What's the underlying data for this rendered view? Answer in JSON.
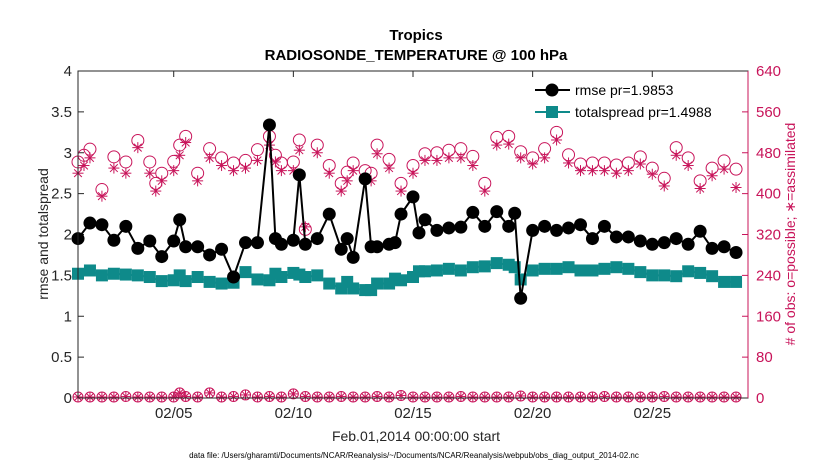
{
  "chart_data": {
    "type": "line",
    "title": "Tropics",
    "subtitle": "RADIOSONDE_TEMPERATURE @ 100 hPa",
    "xlabel": "Feb.01,2014 00:00:00 start",
    "ylabel_left": "rmse and totalspread",
    "ylabel_right": "# of obs: o=possible; ∗=assimilated",
    "footnote": "data file: /Users/gharamti/Documents/NCAR/Reanalysis/~/Documents/NCAR/Reanalysis/webpub/obs_diag_output_2014-02.nc",
    "x_unit": "day of Feb 2014 (0 = Feb.01 00:00)",
    "xlim": [
      0,
      28
    ],
    "x_ticks": [
      {
        "value": 4,
        "label": "02/05"
      },
      {
        "value": 9,
        "label": "02/10"
      },
      {
        "value": 14,
        "label": "02/15"
      },
      {
        "value": 19,
        "label": "02/20"
      },
      {
        "value": 24,
        "label": "02/25"
      }
    ],
    "ylim_left": [
      0,
      4
    ],
    "y_ticks_left": [
      "0",
      "0.5",
      "1",
      "1.5",
      "2",
      "2.5",
      "3",
      "3.5",
      "4"
    ],
    "ylim_right": [
      0,
      640
    ],
    "y_ticks_right": [
      "0",
      "80",
      "160",
      "240",
      "320",
      "400",
      "480",
      "560",
      "640"
    ],
    "grid": false,
    "legend_position": "top-right",
    "colors": {
      "rmse": "#000000",
      "totalspread": "#0e8a8a",
      "obs": "#c8145a"
    },
    "series": [
      {
        "name": "rmse pr=1.9853",
        "axis": "left",
        "x": [
          0.0,
          0.5,
          1.0,
          1.5,
          2.0,
          2.5,
          3.0,
          3.5,
          4.0,
          4.25,
          4.5,
          5.0,
          5.5,
          6.0,
          6.5,
          7.0,
          7.5,
          8.0,
          8.25,
          8.5,
          9.0,
          9.25,
          9.5,
          10.0,
          10.5,
          11.0,
          11.25,
          11.5,
          12.0,
          12.25,
          12.5,
          13.0,
          13.25,
          13.5,
          14.0,
          14.25,
          14.5,
          15.0,
          15.5,
          16.0,
          16.5,
          17.0,
          17.5,
          18.0,
          18.25,
          18.5,
          19.0,
          19.5,
          20.0,
          20.5,
          21.0,
          21.5,
          22.0,
          22.5,
          23.0,
          23.5,
          24.0,
          24.5,
          25.0,
          25.5,
          26.0,
          26.5,
          27.0,
          27.5
        ],
        "values": [
          1.95,
          2.14,
          2.12,
          1.93,
          2.1,
          1.83,
          1.92,
          1.73,
          1.92,
          2.18,
          1.85,
          1.85,
          1.75,
          1.82,
          1.48,
          1.9,
          1.9,
          3.34,
          1.95,
          1.88,
          1.93,
          2.73,
          1.88,
          1.95,
          2.25,
          1.82,
          1.95,
          1.72,
          2.68,
          1.85,
          1.85,
          1.88,
          1.9,
          2.25,
          2.46,
          2.02,
          2.18,
          2.05,
          2.08,
          2.09,
          2.27,
          2.1,
          2.28,
          2.1,
          2.26,
          1.22,
          2.05,
          2.1,
          2.05,
          2.08,
          2.12,
          1.95,
          2.1,
          1.97,
          1.97,
          1.92,
          1.88,
          1.9,
          1.95,
          1.88,
          2.04,
          1.83,
          1.85,
          1.78
        ]
      },
      {
        "name": "totalspread pr=1.4988",
        "axis": "left",
        "x": [
          0.0,
          0.5,
          1.0,
          1.5,
          2.0,
          2.5,
          3.0,
          3.5,
          4.0,
          4.25,
          4.5,
          5.0,
          5.5,
          6.0,
          6.5,
          7.0,
          7.5,
          8.0,
          8.25,
          8.5,
          9.0,
          9.25,
          9.5,
          10.0,
          10.5,
          11.0,
          11.25,
          11.5,
          12.0,
          12.25,
          12.5,
          13.0,
          13.25,
          13.5,
          14.0,
          14.25,
          14.5,
          15.0,
          15.5,
          16.0,
          16.5,
          17.0,
          17.5,
          18.0,
          18.25,
          18.5,
          19.0,
          19.5,
          20.0,
          20.5,
          21.0,
          21.5,
          22.0,
          22.5,
          23.0,
          23.5,
          24.0,
          24.5,
          25.0,
          25.5,
          26.0,
          26.5,
          27.0,
          27.5
        ],
        "values": [
          1.52,
          1.56,
          1.5,
          1.52,
          1.51,
          1.5,
          1.48,
          1.43,
          1.44,
          1.5,
          1.43,
          1.48,
          1.42,
          1.4,
          1.41,
          1.54,
          1.45,
          1.44,
          1.52,
          1.48,
          1.53,
          1.51,
          1.48,
          1.5,
          1.4,
          1.34,
          1.42,
          1.34,
          1.32,
          1.32,
          1.4,
          1.4,
          1.46,
          1.44,
          1.48,
          1.55,
          1.55,
          1.56,
          1.58,
          1.56,
          1.6,
          1.61,
          1.65,
          1.63,
          1.6,
          1.45,
          1.56,
          1.58,
          1.58,
          1.6,
          1.56,
          1.56,
          1.58,
          1.6,
          1.58,
          1.54,
          1.5,
          1.5,
          1.49,
          1.55,
          1.53,
          1.49,
          1.42,
          1.42
        ]
      },
      {
        "name": "obs possible",
        "axis": "right",
        "x": [
          0.0,
          0.25,
          0.5,
          1.0,
          1.5,
          2.0,
          2.5,
          3.0,
          3.25,
          3.5,
          4.0,
          4.25,
          4.5,
          5.0,
          5.5,
          6.0,
          6.5,
          7.0,
          7.5,
          8.0,
          8.25,
          8.5,
          9.0,
          9.25,
          9.5,
          10.0,
          10.5,
          11.0,
          11.25,
          11.5,
          12.0,
          12.25,
          12.5,
          13.0,
          13.5,
          14.0,
          14.5,
          15.0,
          15.5,
          16.0,
          16.5,
          17.0,
          17.5,
          18.0,
          18.5,
          19.0,
          19.5,
          20.0,
          20.5,
          21.0,
          21.5,
          22.0,
          22.5,
          23.0,
          23.5,
          24.0,
          24.5,
          25.0,
          25.5,
          26.0,
          26.5,
          27.0,
          27.5
        ],
        "values": [
          462,
          475,
          487,
          408,
          472,
          462,
          504,
          462,
          420,
          440,
          463,
          495,
          512,
          440,
          488,
          470,
          460,
          465,
          486,
          512,
          475,
          460,
          462,
          505,
          330,
          495,
          455,
          420,
          442,
          460,
          445,
          440,
          495,
          467,
          420,
          455,
          478,
          480,
          485,
          488,
          473,
          420,
          510,
          512,
          482,
          470,
          488,
          520,
          476,
          458,
          460,
          460,
          456,
          460,
          472,
          450,
          430,
          490,
          470,
          425,
          450,
          464,
          448
        ]
      },
      {
        "name": "obs assimilated",
        "axis": "right",
        "x": [
          0.0,
          0.25,
          0.5,
          1.0,
          1.5,
          2.0,
          2.5,
          3.0,
          3.25,
          3.5,
          4.0,
          4.25,
          4.5,
          5.0,
          5.5,
          6.0,
          6.5,
          7.0,
          7.5,
          8.0,
          8.25,
          8.5,
          9.0,
          9.25,
          9.5,
          10.0,
          10.5,
          11.0,
          11.25,
          11.5,
          12.0,
          12.25,
          12.5,
          13.0,
          13.5,
          14.0,
          14.5,
          15.0,
          15.5,
          16.0,
          16.5,
          17.0,
          17.5,
          18.0,
          18.5,
          19.0,
          19.5,
          20.0,
          20.5,
          21.0,
          21.5,
          22.0,
          22.5,
          23.0,
          23.5,
          24.0,
          24.5,
          25.0,
          25.5,
          26.0,
          26.5,
          27.0,
          27.5
        ],
        "values": [
          440,
          455,
          470,
          395,
          450,
          440,
          490,
          440,
          405,
          425,
          445,
          475,
          500,
          425,
          470,
          455,
          445,
          450,
          465,
          495,
          462,
          445,
          445,
          485,
          335,
          480,
          440,
          405,
          425,
          445,
          430,
          425,
          478,
          450,
          405,
          440,
          465,
          465,
          470,
          470,
          455,
          405,
          495,
          497,
          470,
          458,
          470,
          505,
          460,
          445,
          445,
          445,
          440,
          445,
          458,
          438,
          415,
          475,
          455,
          410,
          435,
          448,
          412
        ]
      },
      {
        "name": "obs rejected possible",
        "axis": "right",
        "x": [
          0.0,
          0.5,
          1.0,
          1.5,
          2.0,
          2.5,
          3.0,
          3.5,
          4.0,
          4.25,
          4.5,
          5.0,
          5.5,
          6.0,
          6.5,
          7.0,
          7.5,
          8.0,
          8.5,
          9.0,
          9.5,
          10.0,
          10.5,
          11.0,
          11.5,
          12.0,
          12.5,
          13.0,
          13.5,
          14.0,
          14.5,
          15.0,
          15.5,
          16.0,
          16.5,
          17.0,
          17.5,
          18.0,
          18.5,
          19.0,
          19.5,
          20.0,
          20.5,
          21.0,
          21.5,
          22.0,
          22.5,
          23.0,
          23.5,
          24.0,
          24.5,
          25.0,
          25.5,
          26.0,
          26.5,
          27.0,
          27.5
        ],
        "values": [
          2,
          2,
          2,
          2,
          3,
          2,
          2,
          2,
          2,
          10,
          3,
          2,
          10,
          2,
          3,
          6,
          2,
          3,
          2,
          8,
          3,
          2,
          2,
          3,
          2,
          2,
          3,
          2,
          5,
          2,
          2,
          2,
          2,
          3,
          2,
          2,
          2,
          2,
          4,
          2,
          2,
          2,
          2,
          2,
          2,
          3,
          2,
          2,
          2,
          2,
          3,
          2,
          2,
          2,
          2,
          2,
          2
        ]
      }
    ]
  }
}
